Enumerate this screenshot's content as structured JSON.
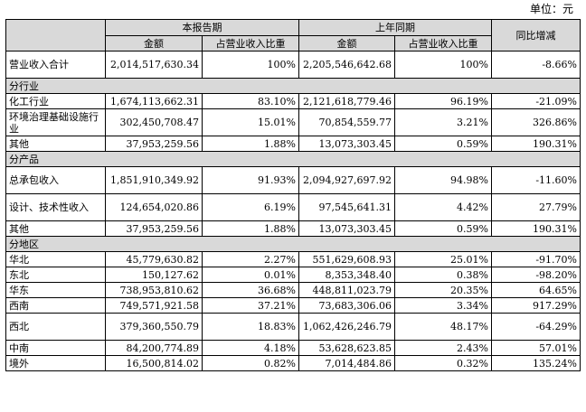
{
  "unit": "单位：元",
  "header": {
    "group_current": "本报告期",
    "group_prior": "上年同期",
    "yoy": "同比增减",
    "amount": "金额",
    "share": "占营业收入比重"
  },
  "total": {
    "label": "营业收入合计",
    "cur_amount": "2,014,517,630.34",
    "cur_share": "100%",
    "prior_amount": "2,205,546,642.68",
    "prior_share": "100%",
    "yoy": "-8.66%"
  },
  "sections": [
    {
      "title": "分行业",
      "rows": [
        {
          "label": "化工行业",
          "cur_amount": "1,674,113,662.31",
          "cur_share": "83.10%",
          "prior_amount": "2,121,618,779.46",
          "prior_share": "96.19%",
          "yoy": "-21.09%"
        },
        {
          "label": "环境治理基础设施行业",
          "cur_amount": "302,450,708.47",
          "cur_share": "15.01%",
          "prior_amount": "70,854,559.77",
          "prior_share": "3.21%",
          "yoy": "326.86%"
        },
        {
          "label": "其他",
          "cur_amount": "37,953,259.56",
          "cur_share": "1.88%",
          "prior_amount": "13,073,303.45",
          "prior_share": "0.59%",
          "yoy": "190.31%"
        }
      ]
    },
    {
      "title": "分产品",
      "rows": [
        {
          "label": "总承包收入",
          "cur_amount": "1,851,910,349.92",
          "cur_share": "91.93%",
          "prior_amount": "2,094,927,697.92",
          "prior_share": "94.98%",
          "yoy": "-11.60%"
        },
        {
          "label": "设计、技术性收入",
          "cur_amount": "124,654,020.86",
          "cur_share": "6.19%",
          "prior_amount": "97,545,641.31",
          "prior_share": "4.42%",
          "yoy": "27.79%"
        },
        {
          "label": "其他",
          "cur_amount": "37,953,259.56",
          "cur_share": "1.88%",
          "prior_amount": "13,073,303.45",
          "prior_share": "0.59%",
          "yoy": "190.31%"
        }
      ]
    },
    {
      "title": "分地区",
      "rows": [
        {
          "label": "华北",
          "cur_amount": "45,779,630.82",
          "cur_share": "2.27%",
          "prior_amount": "551,629,608.93",
          "prior_share": "25.01%",
          "yoy": "-91.70%"
        },
        {
          "label": "东北",
          "cur_amount": "150,127.62",
          "cur_share": "0.01%",
          "prior_amount": "8,353,348.40",
          "prior_share": "0.38%",
          "yoy": "-98.20%"
        },
        {
          "label": "华东",
          "cur_amount": "738,953,810.62",
          "cur_share": "36.68%",
          "prior_amount": "448,811,023.79",
          "prior_share": "20.35%",
          "yoy": "64.65%"
        },
        {
          "label": "西南",
          "cur_amount": "749,571,921.58",
          "cur_share": "37.21%",
          "prior_amount": "73,683,306.06",
          "prior_share": "3.34%",
          "yoy": "917.29%"
        },
        {
          "label": "西北",
          "cur_amount": "379,360,550.79",
          "cur_share": "18.83%",
          "prior_amount": "1,062,426,246.79",
          "prior_share": "48.17%",
          "yoy": "-64.29%"
        },
        {
          "label": "中南",
          "cur_amount": "84,200,774.89",
          "cur_share": "4.18%",
          "prior_amount": "53,628,623.85",
          "prior_share": "2.43%",
          "yoy": "57.01%"
        },
        {
          "label": "境外",
          "cur_amount": "16,500,814.02",
          "cur_share": "0.82%",
          "prior_amount": "7,014,484.86",
          "prior_share": "0.32%",
          "yoy": "135.24%"
        }
      ]
    }
  ]
}
